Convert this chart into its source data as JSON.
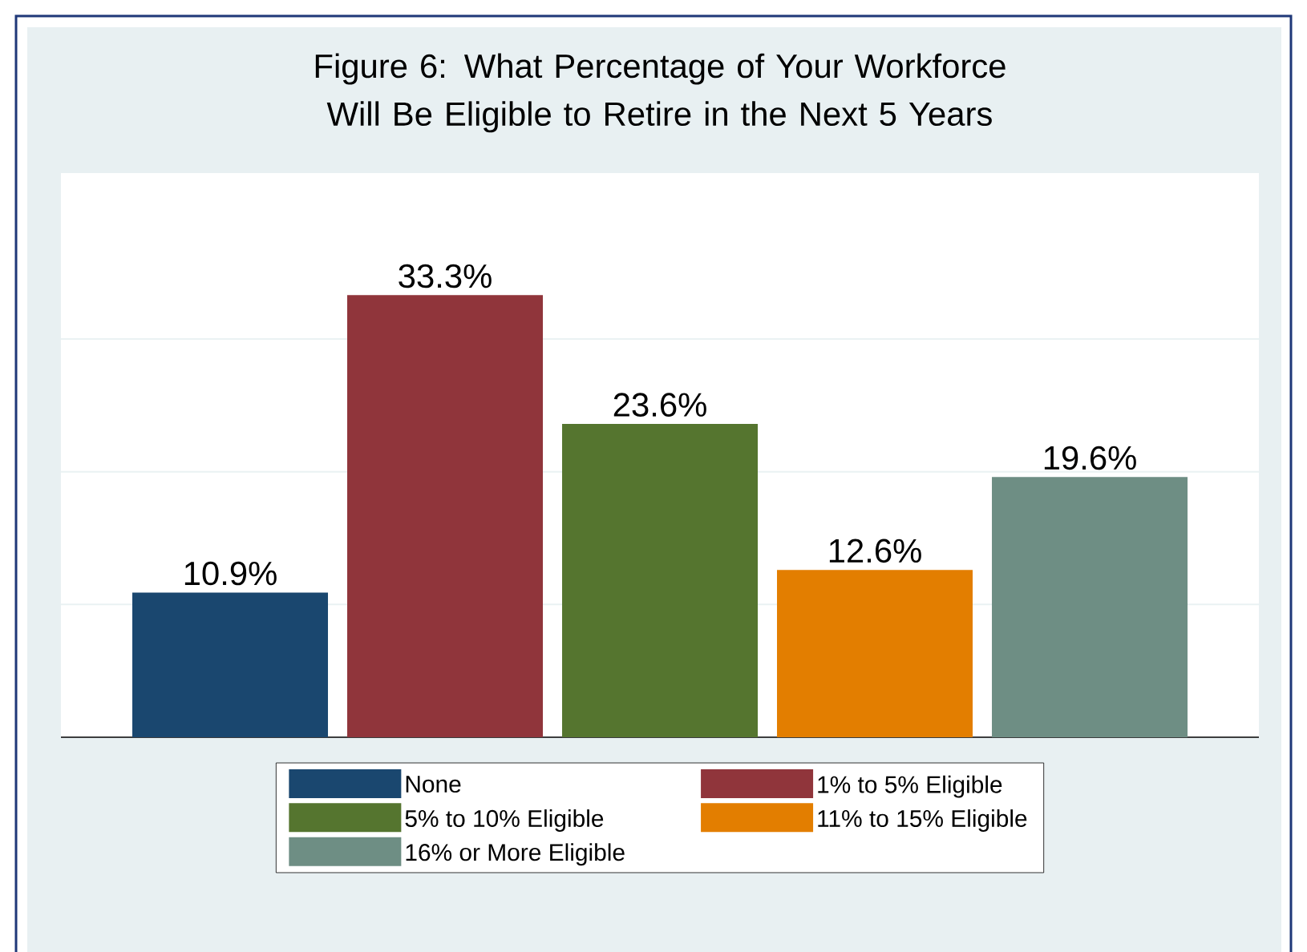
{
  "chart_data": {
    "type": "bar",
    "title": "Figure 6: What Percentage of Your Workforce Will Be Eligible to Retire in the Next 5 Years",
    "categories": [
      null
    ],
    "series": [
      {
        "name": "None",
        "color": "#1a476f",
        "values": [
          10.9
        ],
        "value_labels": [
          "10.9%"
        ]
      },
      {
        "name": "1% to 5% Eligible",
        "color": "#90353b",
        "values": [
          33.3
        ],
        "value_labels": [
          "33.3%"
        ]
      },
      {
        "name": "5% to 10% Eligible",
        "color": "#55752f",
        "values": [
          23.6
        ],
        "value_labels": [
          "23.6%"
        ]
      },
      {
        "name": "11% to 15% Eligible",
        "color": "#e37e00",
        "values": [
          12.6
        ],
        "value_labels": [
          "12.6%"
        ]
      },
      {
        "name": "16% or More Eligible",
        "color": "#6e8e84",
        "values": [
          19.6
        ],
        "value_labels": [
          "19.6%"
        ]
      }
    ],
    "ylim": [
      0,
      42.5
    ],
    "yticks": [
      {
        "value": 10,
        "label": null
      },
      {
        "value": 20,
        "label": null
      },
      {
        "value": 30,
        "label": null
      }
    ],
    "grid": "y",
    "legend": "bottom"
  }
}
